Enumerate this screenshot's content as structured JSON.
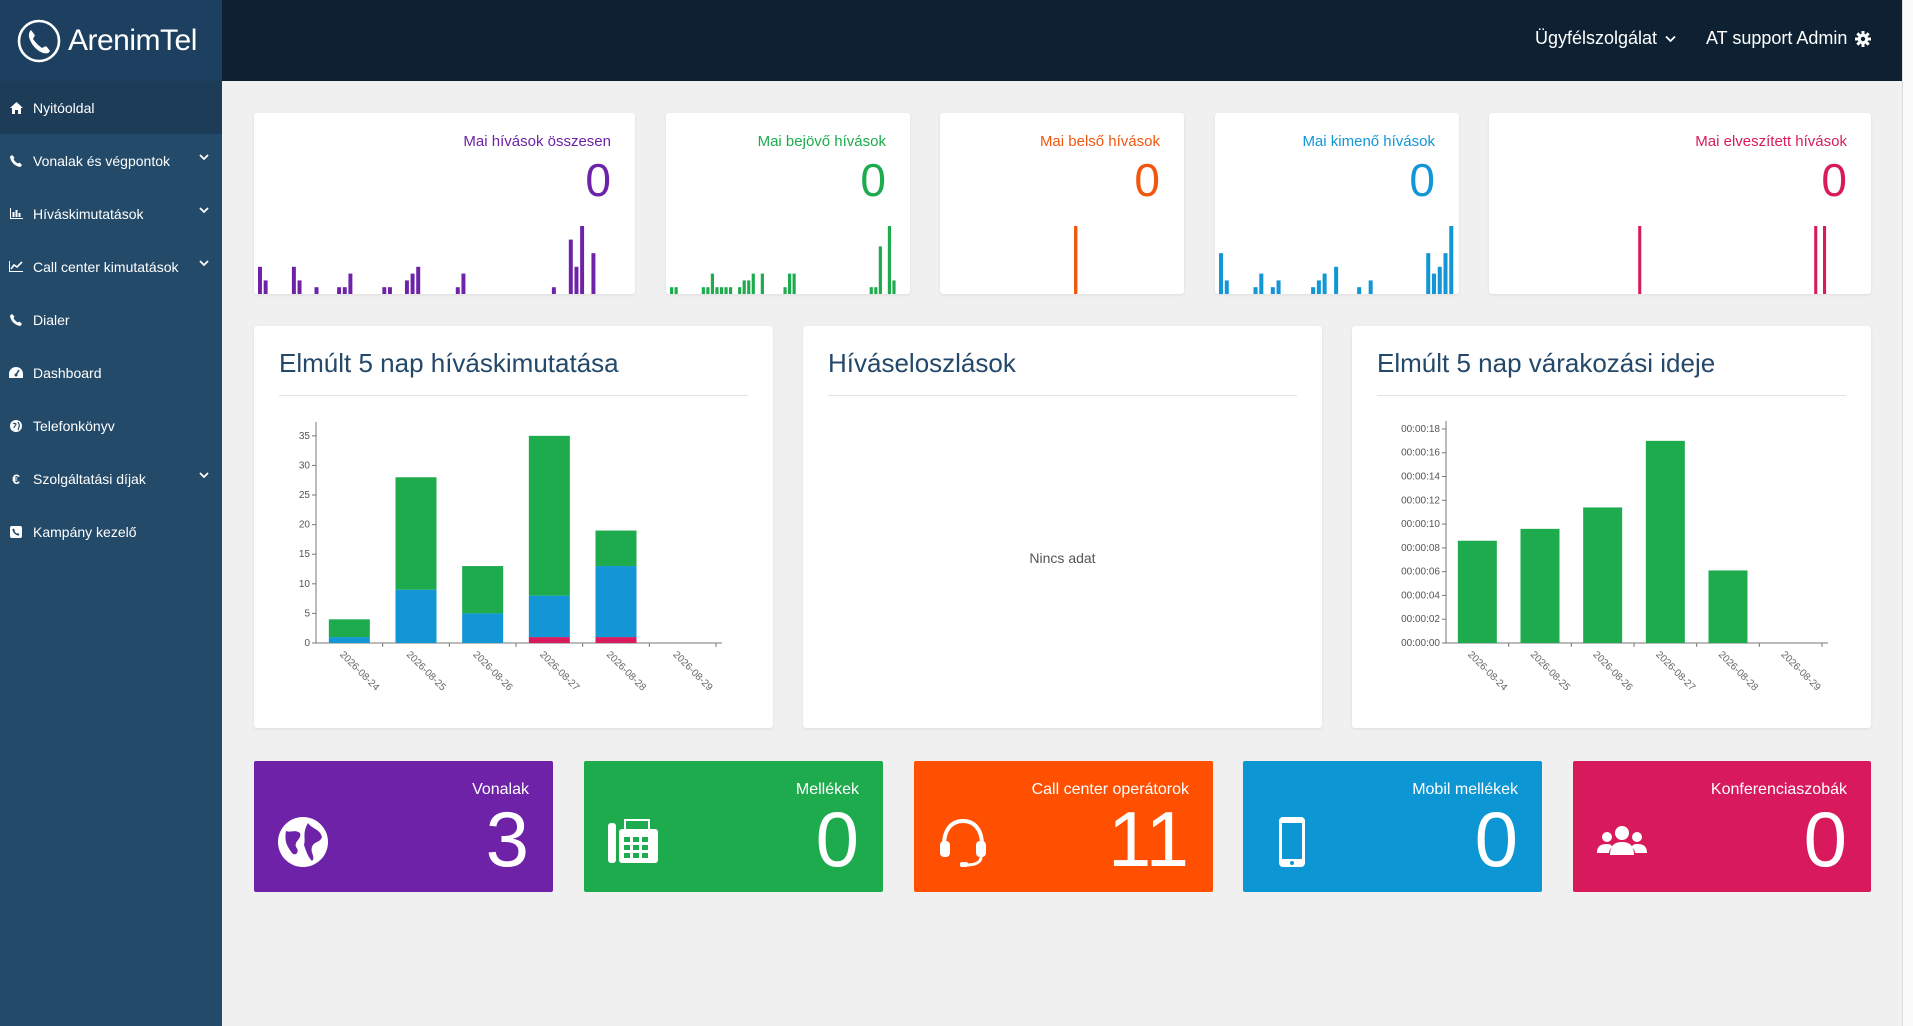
{
  "brand": {
    "name": "ArenimTel"
  },
  "topbar": {
    "helpdesk": "Ügyfélszolgálat",
    "user": "AT support Admin"
  },
  "sidebar": {
    "items": [
      {
        "label": "Nyitóoldal",
        "icon": "home-icon",
        "active": true
      },
      {
        "label": "Vonalak és végpontok",
        "icon": "phone-icon",
        "expandable": true
      },
      {
        "label": "Híváskimutatások",
        "icon": "bar-chart-icon",
        "expandable": true
      },
      {
        "label": "Call center kimutatások",
        "icon": "line-chart-icon",
        "expandable": true
      },
      {
        "label": "Dialer",
        "icon": "phone-icon"
      },
      {
        "label": "Dashboard",
        "icon": "dashboard-icon"
      },
      {
        "label": "Telefonkönyv",
        "icon": "globe-icon"
      },
      {
        "label": "Szolgáltatási díjak",
        "icon": "euro-icon",
        "expandable": true
      },
      {
        "label": "Kampány kezelő",
        "icon": "phone-square-icon"
      }
    ]
  },
  "stats": [
    {
      "title": "Mai hívások összesen",
      "value": "0",
      "color": "#6d22a8"
    },
    {
      "title": "Mai bejövő hívások",
      "value": "0",
      "color": "#1eab4e"
    },
    {
      "title": "Mai belső hívások",
      "value": "0",
      "color": "#f2560e"
    },
    {
      "title": "Mai kimenő hívások",
      "value": "0",
      "color": "#1296d6"
    },
    {
      "title": "Mai elveszített hívások",
      "value": "0",
      "color": "#d81b5e"
    }
  ],
  "panels": {
    "calls": {
      "title": "Elmúlt 5 nap híváskimutatása"
    },
    "distribution": {
      "title": "Híváseloszlások",
      "empty": "Nincs adat"
    },
    "wait": {
      "title": "Elmúlt 5 nap várakozási ideje"
    }
  },
  "chart_data": [
    {
      "type": "bar",
      "stacked": true,
      "categories": [
        "2026-08-24",
        "2026-08-25",
        "2026-08-26",
        "2026-08-27",
        "2026-08-28",
        "2026-08-29"
      ],
      "series": [
        {
          "values": [
            0,
            0,
            0,
            1,
            1,
            0
          ],
          "color": "#d81b5e"
        },
        {
          "values": [
            1,
            9,
            5,
            7,
            12,
            0
          ],
          "color": "#1296d6"
        },
        {
          "values": [
            3,
            19,
            8,
            27,
            6,
            0
          ],
          "color": "#1eab4e"
        }
      ],
      "ylim": [
        0,
        37
      ],
      "yticks": [
        0,
        5,
        10,
        15,
        20,
        25,
        30,
        35
      ],
      "grid": false
    },
    {
      "type": "bar",
      "categories": [
        "2026-08-24",
        "2026-08-25",
        "2026-08-26",
        "2026-08-27",
        "2026-08-28",
        "2026-08-29"
      ],
      "values": [
        8.6,
        9.6,
        11.4,
        17.0,
        6.1,
        0
      ],
      "color": "#1eab4e",
      "ylim": [
        0,
        18.5
      ],
      "yticks": [
        "00:00:00",
        "00:00:02",
        "00:00:04",
        "00:00:06",
        "00:00:08",
        "00:00:10",
        "00:00:12",
        "00:00:14",
        "00:00:16",
        "00:00:18"
      ],
      "grid": false
    }
  ],
  "sparklines": [
    [
      4,
      2,
      0,
      0,
      0,
      0,
      4,
      2,
      0,
      0,
      1,
      0,
      0,
      0,
      1,
      1,
      3,
      0,
      0,
      0,
      0,
      0,
      1,
      1,
      0,
      0,
      2,
      3,
      4,
      0,
      0,
      0,
      0,
      0,
      0,
      1,
      3,
      0,
      0,
      0,
      0,
      0,
      0,
      0,
      0,
      0,
      0,
      0,
      0,
      0,
      0,
      0,
      1,
      0,
      0,
      8,
      4,
      10,
      0,
      6,
      0,
      0,
      0,
      0,
      0,
      0
    ],
    [
      1,
      1,
      0,
      0,
      0,
      0,
      0,
      1,
      1,
      3,
      1,
      1,
      1,
      1,
      0,
      1,
      2,
      2,
      3,
      0,
      3,
      0,
      0,
      0,
      0,
      1,
      3,
      3,
      0,
      0,
      0,
      0,
      0,
      0,
      0,
      0,
      0,
      0,
      0,
      0,
      0,
      0,
      0,
      0,
      1,
      1,
      7,
      0,
      10,
      2,
      0,
      0
    ],
    [
      0,
      0,
      0,
      0,
      0,
      0,
      0,
      0,
      0,
      0,
      0,
      0,
      0,
      0,
      0,
      0,
      0,
      0,
      0,
      0,
      0,
      0,
      0,
      0,
      0,
      0,
      0,
      10,
      0,
      0,
      0,
      0,
      0,
      0,
      0,
      0,
      0,
      0,
      0,
      0,
      0,
      0,
      0,
      0,
      0,
      0,
      0,
      0,
      0
    ],
    [
      6,
      2,
      0,
      0,
      0,
      0,
      1,
      3,
      0,
      1,
      2,
      0,
      0,
      0,
      0,
      0,
      1,
      2,
      3,
      0,
      4,
      0,
      0,
      0,
      1,
      0,
      2,
      0,
      0,
      0,
      0,
      0,
      0,
      0,
      0,
      0,
      6,
      3,
      4,
      6,
      10
    ],
    [
      0,
      0,
      0,
      0,
      0,
      0,
      0,
      0,
      0,
      0,
      0,
      0,
      0,
      0,
      0,
      0,
      0,
      0,
      0,
      0,
      0,
      0,
      0,
      0,
      0,
      0,
      0,
      0,
      0,
      0,
      0,
      0,
      0,
      10,
      0,
      0,
      0,
      0,
      0,
      0,
      0,
      0,
      0,
      0,
      0,
      0,
      0,
      0,
      0,
      0,
      0,
      0,
      0,
      0,
      0,
      0,
      0,
      0,
      0,
      0,
      0,
      0,
      0,
      0,
      0,
      0,
      0,
      0,
      0,
      0,
      0,
      0,
      0,
      10,
      0,
      10,
      0,
      0,
      0,
      0,
      0,
      0,
      0,
      0,
      0
    ]
  ],
  "tiles": [
    {
      "title": "Vonalak",
      "value": "3",
      "color": "#6d22a8",
      "icon": "globe-icon"
    },
    {
      "title": "Mellékek",
      "value": "0",
      "color": "#1eab4e",
      "icon": "fax-phone-icon"
    },
    {
      "title": "Call center operátorok",
      "value": "11",
      "color": "#fe5000",
      "icon": "headset-icon"
    },
    {
      "title": "Mobil mellékek",
      "value": "0",
      "color": "#0d96d4",
      "icon": "mobile-phone-icon"
    },
    {
      "title": "Konferenciaszobák",
      "value": "0",
      "color": "#d8195c",
      "icon": "users-icon"
    }
  ]
}
